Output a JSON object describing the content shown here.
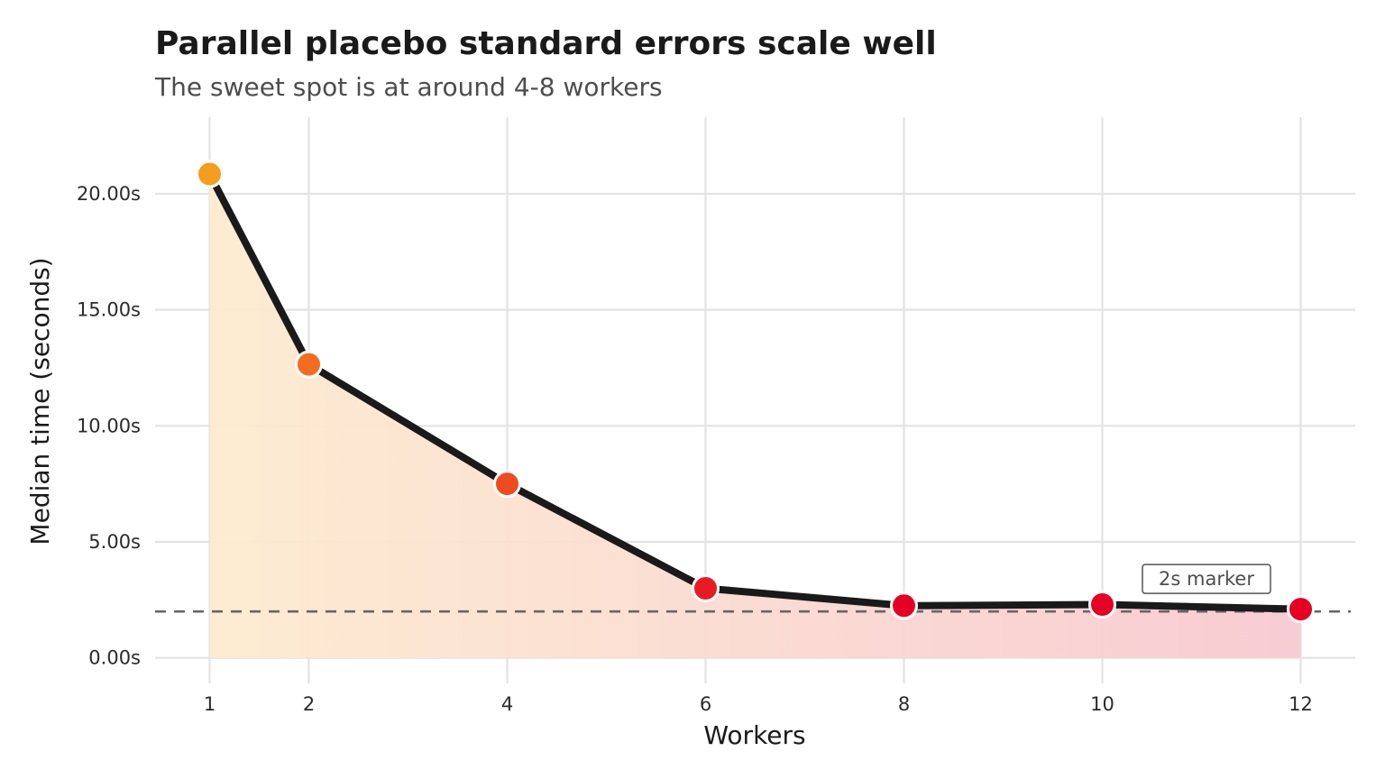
{
  "chart_data": {
    "type": "line",
    "title": "Parallel placebo standard errors scale well",
    "subtitle": "The sweet spot is at around 4-8 workers",
    "xlabel": "Workers",
    "ylabel": "Median time (seconds)",
    "x": [
      1,
      2,
      4,
      6,
      8,
      10,
      12
    ],
    "y": [
      20.85,
      12.65,
      7.5,
      3.0,
      2.25,
      2.3,
      2.1
    ],
    "point_colors": [
      "#f59e1d",
      "#f36c21",
      "#ee4b20",
      "#e81b25",
      "#e60023",
      "#e60023",
      "#e60023"
    ],
    "line_color": "#1a1a1a",
    "area_gradient": [
      "#fdebd0",
      "#f8c9d1"
    ],
    "xticks": [
      1,
      2,
      4,
      6,
      8,
      10,
      12
    ],
    "xtick_labels": [
      "1",
      "2",
      "4",
      "6",
      "8",
      "10",
      "12"
    ],
    "yticks": [
      0,
      5,
      10,
      15,
      20
    ],
    "ytick_labels": [
      "0.00s",
      "5.00s",
      "10.00s",
      "15.00s",
      "20.00s"
    ],
    "xlim": [
      0.45,
      12.55
    ],
    "ylim": [
      -1.1,
      23.3
    ],
    "grid": true,
    "reference_line": {
      "y": 2,
      "style": "dashed",
      "color": "#666666"
    },
    "annotation": {
      "text": "2s marker",
      "x": 11.05,
      "y": 3.4
    }
  }
}
